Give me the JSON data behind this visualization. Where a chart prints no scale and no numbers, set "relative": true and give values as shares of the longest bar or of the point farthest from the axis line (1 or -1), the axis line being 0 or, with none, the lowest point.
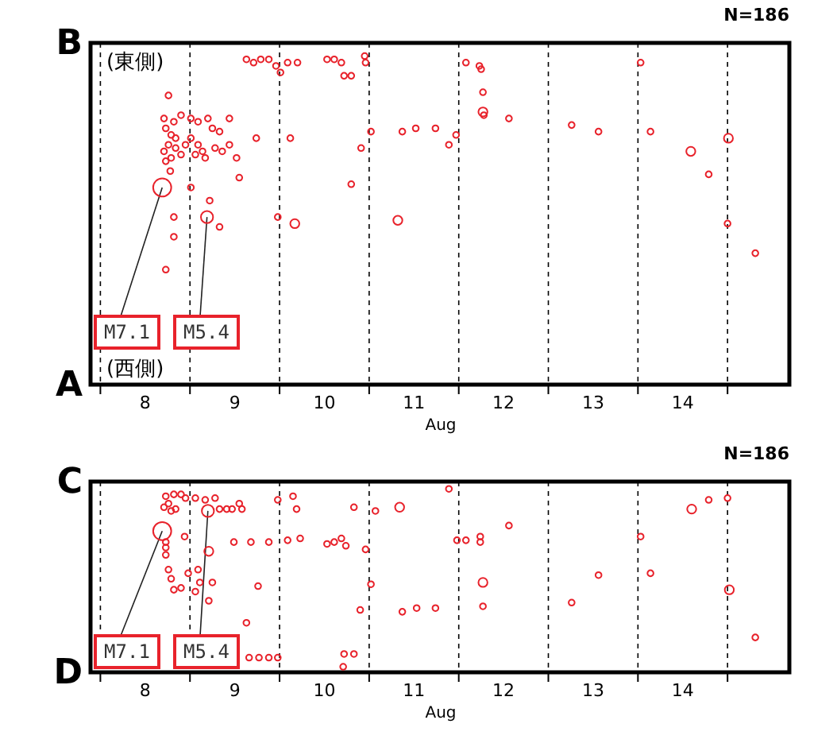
{
  "chart_data": [
    {
      "type": "bubble",
      "subtitle": "N=186",
      "xlabel": "Aug",
      "xlim": [
        7.89,
        15.69
      ],
      "relative": true,
      "xticks": [
        {
          "value": 8,
          "label": null
        },
        {
          "value": 8.5,
          "label": "8"
        },
        {
          "value": 9,
          "label": null
        },
        {
          "value": 9.5,
          "label": "9"
        },
        {
          "value": 10,
          "label": null
        },
        {
          "value": 10.5,
          "label": "10"
        },
        {
          "value": 11,
          "label": null
        },
        {
          "value": 11.5,
          "label": "11"
        },
        {
          "value": 12,
          "label": null
        },
        {
          "value": 12.5,
          "label": "12"
        },
        {
          "value": 13,
          "label": null
        },
        {
          "value": 13.5,
          "label": "13"
        },
        {
          "value": 14,
          "label": null
        },
        {
          "value": 14.5,
          "label": "14"
        },
        {
          "value": 15,
          "label": null
        }
      ],
      "grid": "x",
      "annotations": [
        "B",
        "A",
        "(東側)",
        "(西側)",
        {
          "text": "M7.1",
          "x": 8.69,
          "y": 0.6
        },
        {
          "text": "M5.4",
          "x": 9.19,
          "y": 0.51
        }
      ],
      "series": [
        {
          "color": "#e8222b",
          "x": [
            9.63,
            9.71,
            9.79,
            9.88,
            9.96,
            10.01,
            10.09,
            10.2,
            10.53,
            10.61,
            10.69,
            10.72,
            10.8,
            10.95,
            10.96,
            8.76,
            8.71,
            8.82,
            8.9,
            9.01,
            9.09,
            9.2,
            9.25,
            9.33,
            9.44,
            8.73,
            8.79,
            8.84,
            8.76,
            8.71,
            8.84,
            8.79,
            8.73,
            8.9,
            8.95,
            9.01,
            9.09,
            9.14,
            9.06,
            9.17,
            9.28,
            9.36,
            9.44,
            9.52,
            9.74,
            10.12,
            8.78,
            9.01,
            9.55,
            10.8,
            10.91,
            11.02,
            8.69,
            9.19,
            9.22,
            8.82,
            9.33,
            8.82,
            8.73,
            9.98,
            10.17,
            11.32,
            11.37,
            11.52,
            11.74,
            11.89,
            11.97,
            12.08,
            12.23,
            12.25,
            12.27,
            12.27,
            12.28,
            12.56,
            13.26,
            13.56,
            14.03,
            14.14,
            14.59,
            14.79,
            15.01,
            15.0,
            15.31
          ],
          "values": [
            0.99,
            0.98,
            0.99,
            0.99,
            0.97,
            0.95,
            0.98,
            0.98,
            0.99,
            0.99,
            0.98,
            0.94,
            0.94,
            1,
            0.98,
            0.88,
            0.81,
            0.8,
            0.82,
            0.81,
            0.8,
            0.81,
            0.78,
            0.77,
            0.81,
            0.78,
            0.76,
            0.75,
            0.73,
            0.71,
            0.72,
            0.69,
            0.68,
            0.7,
            0.73,
            0.75,
            0.73,
            0.71,
            0.7,
            0.69,
            0.72,
            0.71,
            0.73,
            0.69,
            0.75,
            0.75,
            0.65,
            0.6,
            0.63,
            0.61,
            0.72,
            0.77,
            0.6,
            0.51,
            0.56,
            0.51,
            0.48,
            0.45,
            0.35,
            0.51,
            0.49,
            0.5,
            0.77,
            0.78,
            0.78,
            0.73,
            0.76,
            0.98,
            0.97,
            0.96,
            0.89,
            0.83,
            0.82,
            0.81,
            0.79,
            0.77,
            0.98,
            0.77,
            0.71,
            0.64,
            0.75,
            0.49,
            0.4
          ],
          "sizes": [
            0.11,
            0.11,
            0.11,
            0.11,
            0.11,
            0.11,
            0.11,
            0.11,
            0.11,
            0.11,
            0.11,
            0.11,
            0.11,
            0.11,
            0.11,
            0.11,
            0.11,
            0.11,
            0.11,
            0.11,
            0.11,
            0.11,
            0.11,
            0.11,
            0.11,
            0.11,
            0.11,
            0.11,
            0.11,
            0.11,
            0.11,
            0.11,
            0.11,
            0.11,
            0.11,
            0.11,
            0.11,
            0.11,
            0.11,
            0.11,
            0.11,
            0.11,
            0.11,
            0.11,
            0.11,
            0.11,
            0.11,
            0.11,
            0.11,
            0.11,
            0.11,
            0.11,
            1,
            0.45,
            0.11,
            0.11,
            0.11,
            0.11,
            0.11,
            0.11,
            0.25,
            0.25,
            0.11,
            0.11,
            0.11,
            0.11,
            0.11,
            0.11,
            0.11,
            0.11,
            0.11,
            0.25,
            0.11,
            0.11,
            0.11,
            0.11,
            0.11,
            0.11,
            0.25,
            0.11,
            0.25,
            0.11,
            0.11
          ]
        }
      ]
    },
    {
      "type": "bubble",
      "subtitle": "N=186",
      "xlabel": "Aug",
      "xlim": [
        7.89,
        15.69
      ],
      "relative": true,
      "xticks": [
        {
          "value": 8,
          "label": null
        },
        {
          "value": 8.5,
          "label": "8"
        },
        {
          "value": 9,
          "label": null
        },
        {
          "value": 9.5,
          "label": "9"
        },
        {
          "value": 10,
          "label": null
        },
        {
          "value": 10.5,
          "label": "10"
        },
        {
          "value": 11,
          "label": null
        },
        {
          "value": 11.5,
          "label": "11"
        },
        {
          "value": 12,
          "label": null
        },
        {
          "value": 12.5,
          "label": "12"
        },
        {
          "value": 13,
          "label": null
        },
        {
          "value": 13.5,
          "label": "13"
        },
        {
          "value": 14,
          "label": null
        },
        {
          "value": 14.5,
          "label": "14"
        },
        {
          "value": 15,
          "label": null
        }
      ],
      "grid": "x",
      "annotations": [
        "C",
        "D",
        {
          "text": "M7.1",
          "x": 8.69,
          "y": 0.77
        },
        {
          "text": "M5.4",
          "x": 9.2,
          "y": 0.88
        }
      ],
      "series": [
        {
          "color": "#e8222b",
          "x": [
            8.73,
            8.82,
            8.9,
            8.76,
            8.71,
            8.79,
            8.84,
            8.95,
            9.06,
            9.17,
            9.28,
            9.33,
            9.41,
            9.47,
            9.55,
            9.58,
            9.98,
            10.15,
            10.19,
            10.83,
            11.07,
            11.34,
            8.69,
            9.2,
            8.94,
            8.73,
            8.73,
            8.73,
            9.21,
            9.49,
            9.68,
            9.88,
            10.09,
            10.23,
            10.53,
            10.61,
            10.69,
            10.74,
            10.96,
            11.02,
            8.76,
            8.79,
            8.82,
            8.9,
            8.98,
            9.09,
            9.11,
            9.25,
            9.06,
            9.21,
            9.76,
            9.63,
            10.9,
            11.37,
            11.53,
            9.66,
            9.77,
            9.88,
            9.98,
            10.72,
            10.83,
            10.71,
            11.89,
            11.98,
            12.08,
            12.24,
            12.24,
            12.56,
            12.27,
            11.74,
            12.27,
            13.26,
            13.56,
            14.03,
            14.14,
            14.6,
            14.79,
            15.0,
            15.02,
            15.31
          ],
          "values": [
            0.96,
            0.97,
            0.97,
            0.92,
            0.9,
            0.88,
            0.89,
            0.95,
            0.95,
            0.94,
            0.95,
            0.89,
            0.89,
            0.89,
            0.92,
            0.89,
            0.94,
            0.96,
            0.89,
            0.9,
            0.88,
            0.9,
            0.77,
            0.88,
            0.74,
            0.71,
            0.68,
            0.64,
            0.66,
            0.71,
            0.71,
            0.71,
            0.72,
            0.73,
            0.7,
            0.71,
            0.73,
            0.69,
            0.67,
            0.48,
            0.56,
            0.51,
            0.45,
            0.46,
            0.54,
            0.56,
            0.49,
            0.49,
            0.44,
            0.39,
            0.47,
            0.27,
            0.34,
            0.33,
            0.35,
            0.08,
            0.08,
            0.08,
            0.08,
            0.1,
            0.1,
            0.03,
            1,
            0.72,
            0.72,
            0.74,
            0.71,
            0.8,
            0.49,
            0.35,
            0.36,
            0.38,
            0.53,
            0.74,
            0.54,
            0.89,
            0.94,
            0.95,
            0.45,
            0.19
          ],
          "sizes": [
            0.11,
            0.11,
            0.11,
            0.11,
            0.11,
            0.11,
            0.11,
            0.11,
            0.11,
            0.11,
            0.11,
            0.11,
            0.11,
            0.11,
            0.11,
            0.11,
            0.11,
            0.11,
            0.11,
            0.11,
            0.11,
            0.25,
            1,
            0.45,
            0.11,
            0.11,
            0.11,
            0.11,
            0.25,
            0.11,
            0.11,
            0.11,
            0.11,
            0.11,
            0.11,
            0.11,
            0.11,
            0.11,
            0.11,
            0.11,
            0.11,
            0.11,
            0.11,
            0.11,
            0.11,
            0.11,
            0.11,
            0.11,
            0.11,
            0.11,
            0.11,
            0.11,
            0.11,
            0.11,
            0.11,
            0.11,
            0.11,
            0.11,
            0.11,
            0.11,
            0.11,
            0.11,
            0.11,
            0.11,
            0.11,
            0.11,
            0.11,
            0.11,
            0.25,
            0.11,
            0.11,
            0.11,
            0.11,
            0.11,
            0.11,
            0.25,
            0.11,
            0.11,
            0.25,
            0.11
          ]
        }
      ]
    }
  ]
}
